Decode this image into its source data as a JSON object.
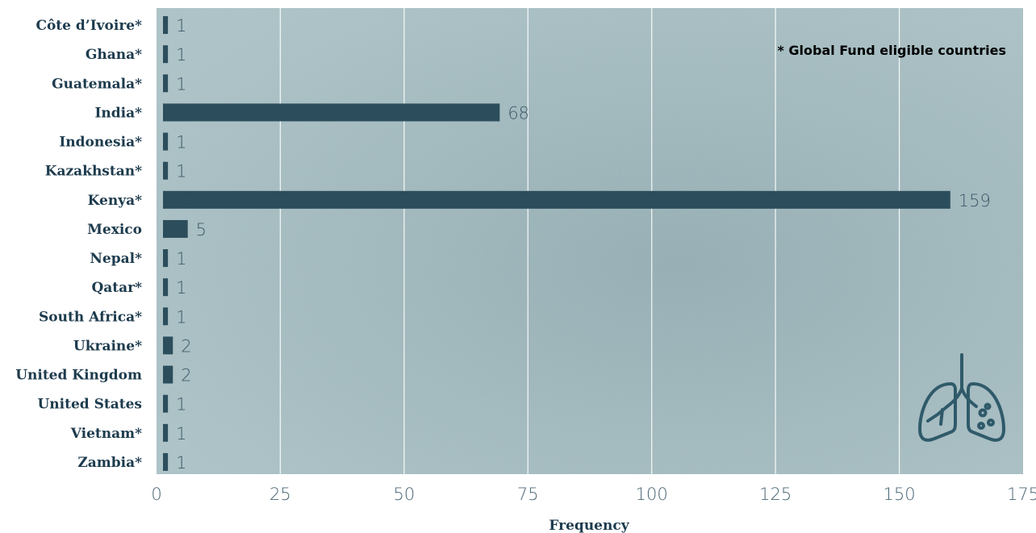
{
  "chart_data": {
    "type": "bar",
    "orientation": "horizontal",
    "categories": [
      "Côte d’Ivoire*",
      "Ghana*",
      "Guatemala*",
      "India*",
      "Indonesia*",
      "Kazakhstan*",
      "Kenya*",
      "Mexico",
      "Nepal*",
      "Qatar*",
      "South Africa*",
      "Ukraine*",
      "United Kingdom",
      "United States",
      "Vietnam*",
      "Zambia*"
    ],
    "values": [
      1,
      1,
      1,
      68,
      1,
      1,
      159,
      5,
      1,
      1,
      1,
      2,
      2,
      1,
      1,
      1
    ],
    "xlabel": "Frequency",
    "ylabel": "",
    "xlim": [
      0,
      175
    ],
    "xticks": [
      "0",
      "25",
      "50",
      "75",
      "100",
      "125",
      "150",
      "175"
    ],
    "grid": true,
    "annotation": "* Global Fund eligible countries",
    "colors": {
      "bar": "#2c4d5c",
      "plot_background": "#9fb7bc",
      "text": "#1d3b4d"
    }
  },
  "icons": {
    "decoration": "lungs-icon"
  }
}
